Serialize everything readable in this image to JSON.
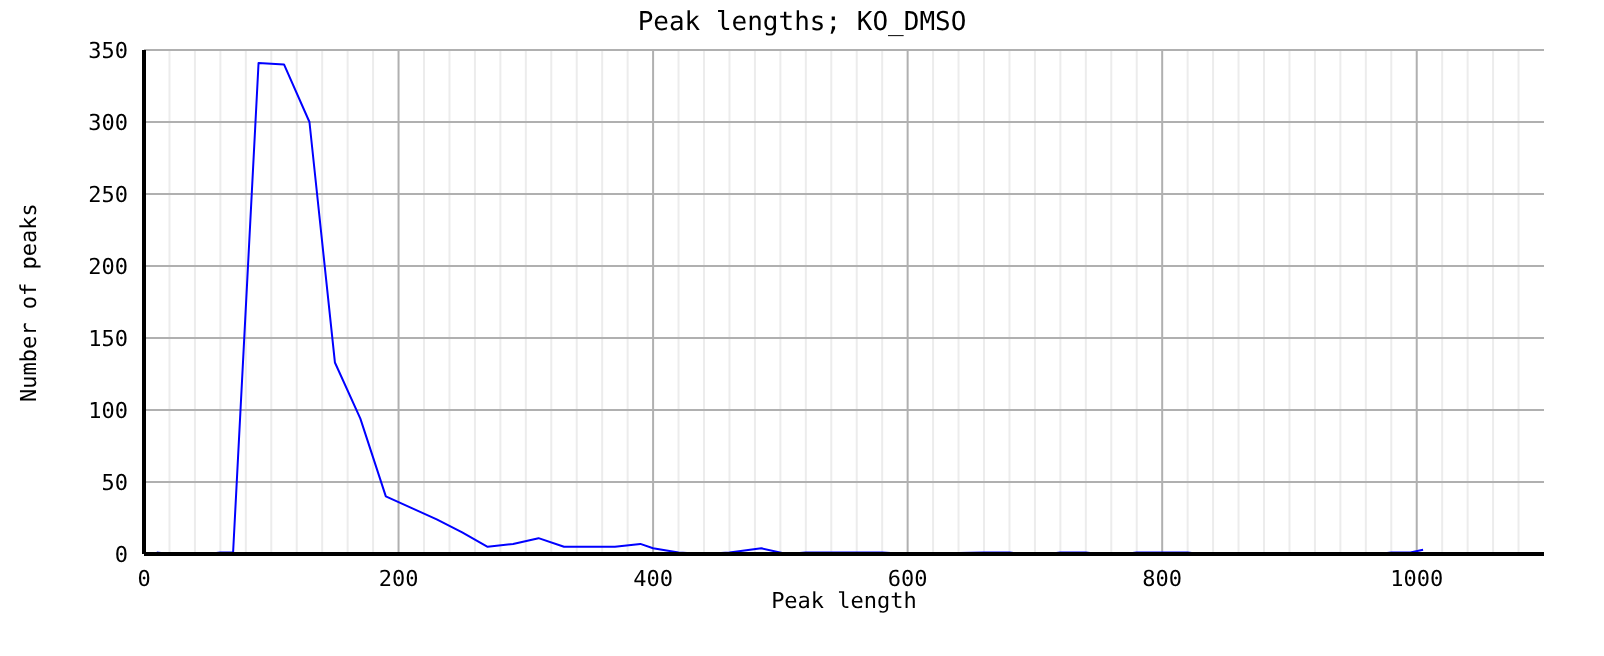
{
  "chart_data": {
    "type": "line",
    "title": "Peak lengths; KO_DMSO",
    "xlabel": "Peak length",
    "ylabel": "Number of peaks",
    "series": [
      {
        "color": "#0000ff",
        "x": [
          10,
          20,
          50,
          60,
          70,
          90,
          110,
          130,
          150,
          170,
          190,
          210,
          230,
          250,
          270,
          290,
          310,
          330,
          370,
          390,
          400,
          420,
          440,
          460,
          485,
          505,
          520,
          580,
          600,
          660,
          680,
          690,
          710,
          720,
          740,
          750,
          770,
          780,
          820,
          830,
          970,
          980,
          995,
          1005
        ],
        "values": [
          1,
          0,
          0,
          1,
          1,
          341,
          340,
          300,
          133,
          94,
          40,
          32,
          24,
          15,
          5,
          7,
          11,
          5,
          5,
          7,
          4,
          1,
          0,
          1,
          4,
          0,
          1,
          1,
          0,
          1,
          1,
          0,
          0,
          1,
          1,
          0,
          0,
          1,
          1,
          0,
          0,
          1,
          1,
          3
        ]
      }
    ],
    "xlim": [
      0,
      1100
    ],
    "xticks": [
      0,
      {
        "value": 20,
        "label": null
      },
      {
        "value": 40,
        "label": null
      },
      {
        "value": 60,
        "label": null
      },
      {
        "value": 80,
        "label": null
      },
      {
        "value": 100,
        "label": null
      },
      {
        "value": 120,
        "label": null
      },
      {
        "value": 140,
        "label": null
      },
      {
        "value": 160,
        "label": null
      },
      {
        "value": 180,
        "label": null
      },
      200,
      {
        "value": 220,
        "label": null
      },
      {
        "value": 240,
        "label": null
      },
      {
        "value": 260,
        "label": null
      },
      {
        "value": 280,
        "label": null
      },
      {
        "value": 300,
        "label": null
      },
      {
        "value": 320,
        "label": null
      },
      {
        "value": 340,
        "label": null
      },
      {
        "value": 360,
        "label": null
      },
      {
        "value": 380,
        "label": null
      },
      400,
      {
        "value": 420,
        "label": null
      },
      {
        "value": 440,
        "label": null
      },
      {
        "value": 460,
        "label": null
      },
      {
        "value": 480,
        "label": null
      },
      {
        "value": 500,
        "label": null
      },
      {
        "value": 520,
        "label": null
      },
      {
        "value": 540,
        "label": null
      },
      {
        "value": 560,
        "label": null
      },
      {
        "value": 580,
        "label": null
      },
      600,
      {
        "value": 620,
        "label": null
      },
      {
        "value": 640,
        "label": null
      },
      {
        "value": 660,
        "label": null
      },
      {
        "value": 680,
        "label": null
      },
      {
        "value": 700,
        "label": null
      },
      {
        "value": 720,
        "label": null
      },
      {
        "value": 740,
        "label": null
      },
      {
        "value": 760,
        "label": null
      },
      {
        "value": 780,
        "label": null
      },
      800,
      {
        "value": 820,
        "label": null
      },
      {
        "value": 840,
        "label": null
      },
      {
        "value": 860,
        "label": null
      },
      {
        "value": 880,
        "label": null
      },
      {
        "value": 900,
        "label": null
      },
      {
        "value": 920,
        "label": null
      },
      {
        "value": 940,
        "label": null
      },
      {
        "value": 960,
        "label": null
      },
      {
        "value": 980,
        "label": null
      },
      1000,
      {
        "value": 1020,
        "label": null
      },
      {
        "value": 1040,
        "label": null
      },
      {
        "value": 1060,
        "label": null
      },
      {
        "value": 1080,
        "label": null
      }
    ],
    "ylim": [
      0,
      350
    ],
    "yticks": [
      0,
      50,
      100,
      150,
      200,
      250,
      300,
      350
    ],
    "grid": true,
    "marker": "none",
    "line_style": "solid"
  }
}
